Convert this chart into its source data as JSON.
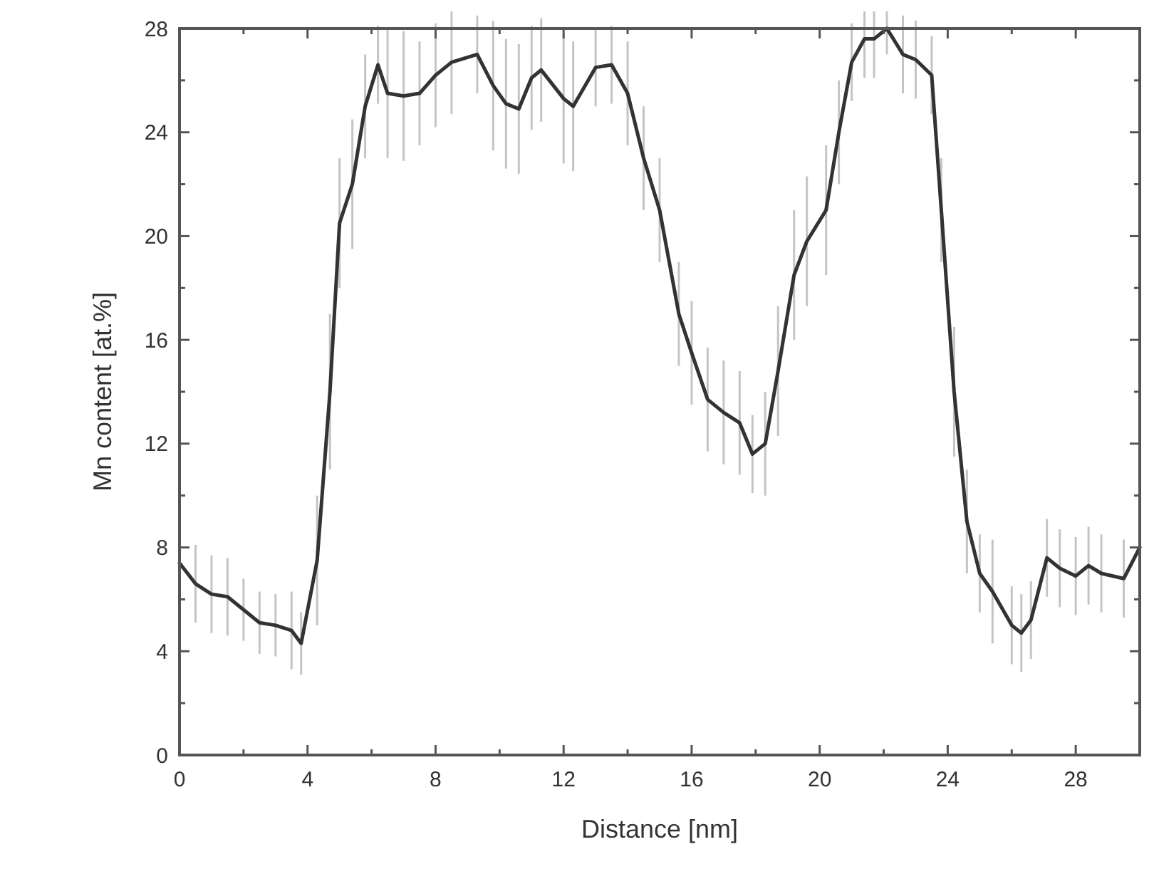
{
  "chart_data": {
    "type": "line",
    "xlabel": "Distance [nm]",
    "ylabel": "Mn content [at.%]",
    "xlim": [
      0,
      30
    ],
    "ylim": [
      0,
      28
    ],
    "xticks": [
      0,
      {
        "value": 2,
        "label": null
      },
      4,
      {
        "value": 6,
        "label": null
      },
      8,
      {
        "value": 10,
        "label": null
      },
      12,
      {
        "value": 14,
        "label": null
      },
      16,
      {
        "value": 18,
        "label": null
      },
      20,
      {
        "value": 22,
        "label": null
      },
      24,
      {
        "value": 26,
        "label": null
      },
      28
    ],
    "yticks": [
      0,
      {
        "value": 2,
        "label": null
      },
      4,
      {
        "value": 6,
        "label": null
      },
      8,
      {
        "value": 10,
        "label": null
      },
      12,
      {
        "value": 14,
        "label": null
      },
      16,
      {
        "value": 18,
        "label": null
      },
      20,
      {
        "value": 22,
        "label": null
      },
      24,
      {
        "value": 26,
        "label": null
      },
      28
    ],
    "grid": false,
    "marker": "none",
    "line_style": "solid",
    "series": [
      {
        "color": "#333333",
        "x": [
          0,
          0.5,
          1,
          1.5,
          2,
          2.5,
          3,
          3.5,
          3.8,
          4.3,
          4.7,
          5,
          5.4,
          5.8,
          6.2,
          6.5,
          7,
          7.5,
          8,
          8.5,
          9.3,
          9.8,
          10.2,
          10.6,
          11,
          11.3,
          12,
          12.3,
          13,
          13.5,
          14,
          14.5,
          15,
          15.6,
          16,
          16.5,
          17,
          17.5,
          17.9,
          18.3,
          18.7,
          19.2,
          19.6,
          20.2,
          20.6,
          21,
          21.4,
          21.7,
          22.1,
          22.6,
          23,
          23.5,
          23.8,
          24.2,
          24.6,
          25,
          25.4,
          26,
          26.3,
          26.6,
          27.1,
          27.5,
          28,
          28.4,
          28.8,
          29.5,
          30
        ],
        "values": [
          7.4,
          6.6,
          6.2,
          6.1,
          5.6,
          5.1,
          5,
          4.8,
          4.3,
          7.5,
          14,
          20.5,
          22,
          25,
          26.6,
          25.5,
          25.4,
          25.5,
          26.2,
          26.7,
          27,
          25.8,
          25.1,
          24.9,
          26.1,
          26.4,
          25.3,
          25,
          26.5,
          26.6,
          25.5,
          23,
          21,
          17,
          15.5,
          13.7,
          13.2,
          12.8,
          11.6,
          12,
          14.8,
          18.5,
          19.8,
          21,
          24,
          26.7,
          27.6,
          27.6,
          28,
          27,
          26.8,
          26.2,
          21,
          14,
          9,
          7,
          6.3,
          5,
          4.7,
          5.2,
          7.6,
          7.2,
          6.9,
          7.3,
          7,
          6.8,
          8
        ],
        "errors": [
          1.5,
          1.5,
          1.5,
          1.5,
          1.2,
          1.2,
          1.2,
          1.5,
          1.2,
          2.5,
          3,
          2.5,
          2.5,
          2,
          1.5,
          2.5,
          2.5,
          2,
          2,
          2,
          1.5,
          2.5,
          2.5,
          2.5,
          2,
          2,
          2.5,
          2.5,
          1.5,
          1.5,
          2,
          2,
          2,
          2,
          2,
          2,
          2,
          2,
          1.5,
          2,
          2.5,
          2.5,
          2.5,
          2.5,
          2,
          1.5,
          1.5,
          1.5,
          1,
          1.5,
          1.5,
          1.5,
          2,
          2.5,
          2,
          1.5,
          2,
          1.5,
          1.5,
          1.5,
          1.5,
          1.5,
          1.5,
          1.5,
          1.5,
          1.5,
          1.5
        ]
      }
    ]
  }
}
